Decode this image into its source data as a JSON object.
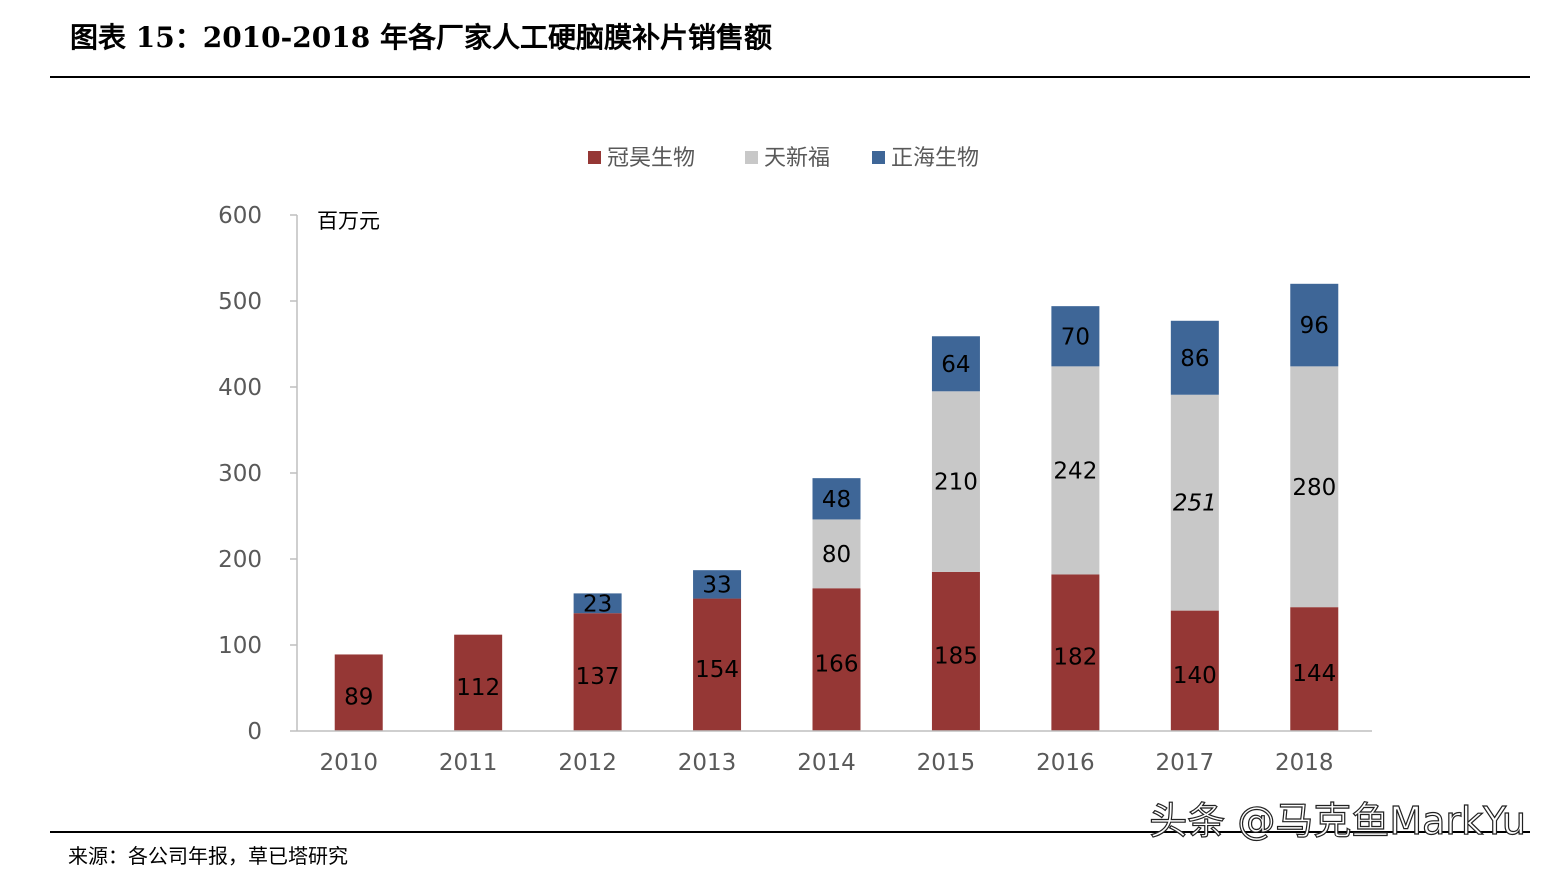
{
  "header": {
    "title": "图表 15：2010-2018 年各厂家人工硬脑膜补片销售额"
  },
  "footer": {
    "source": "来源：各公司年报，草已塔研究",
    "watermark": "头条 @马克鱼MarkYu"
  },
  "chart_data": {
    "type": "bar",
    "stacked": true,
    "unit_label": "百万元",
    "categories": [
      "2010",
      "2011",
      "2012",
      "2013",
      "2014",
      "2015",
      "2016",
      "2017",
      "2018"
    ],
    "series": [
      {
        "name": "冠昊生物",
        "color": "#953735",
        "values": [
          89,
          112,
          137,
          154,
          166,
          185,
          182,
          140,
          144
        ]
      },
      {
        "name": "天新福",
        "color": "#C8C8C8",
        "values": [
          null,
          null,
          null,
          null,
          80,
          210,
          242,
          251,
          280
        ]
      },
      {
        "name": "正海生物",
        "color": "#3E6697",
        "values": [
          null,
          null,
          23,
          33,
          48,
          64,
          70,
          86,
          96
        ]
      }
    ],
    "ylim": [
      0,
      600
    ],
    "yticks": [
      0,
      100,
      200,
      300,
      400,
      500,
      600
    ],
    "legend_position": "top-center",
    "grid": false
  }
}
